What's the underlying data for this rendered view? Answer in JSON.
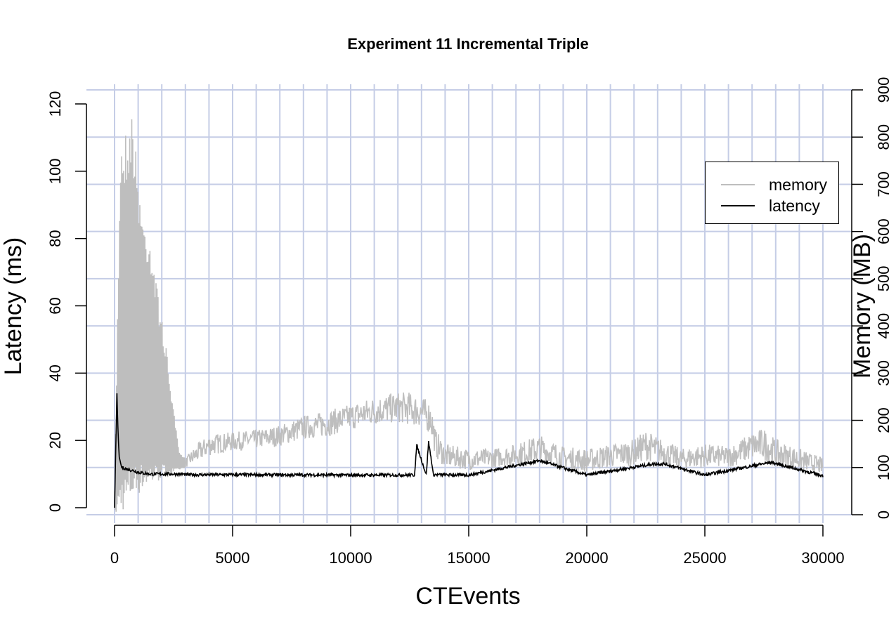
{
  "chart_data": {
    "type": "line",
    "title": "Experiment 11 Incremental Triple",
    "xlabel": "CTEvents",
    "ylabel_left": "Latency (ms)",
    "ylabel_right": "Memory (MB)",
    "xlim": [
      0,
      30000
    ],
    "ylim_left": [
      0,
      120
    ],
    "ylim_right": [
      0,
      900
    ],
    "x_ticks": [
      "0",
      "5000",
      "10000",
      "15000",
      "20000",
      "25000",
      "30000"
    ],
    "y_left_ticks": [
      "0",
      "20",
      "40",
      "60",
      "80",
      "100",
      "120"
    ],
    "y_right_ticks": [
      "0",
      "100",
      "200",
      "300",
      "400",
      "500",
      "600",
      "700",
      "800",
      "900"
    ],
    "grid": true,
    "legend_position": "top-right",
    "colors": {
      "memory": "#bebebe",
      "latency": "#000000",
      "grid": "#c5cde6"
    },
    "series": [
      {
        "name": "memory",
        "axis": "right",
        "x": [
          0,
          250,
          500,
          750,
          1000,
          1250,
          1500,
          1750,
          2000,
          2250,
          2500,
          2750,
          3000,
          3500,
          4000,
          5000,
          6000,
          7000,
          8000,
          9000,
          10000,
          11000,
          12000,
          12500,
          13000,
          13400,
          13600,
          14000,
          15000,
          16000,
          17000,
          18000,
          19000,
          20000,
          21000,
          22000,
          22500,
          23000,
          24000,
          25000,
          26000,
          27000,
          27500,
          28000,
          29000,
          30000
        ],
        "values": [
          50,
          800,
          820,
          860,
          720,
          620,
          600,
          500,
          420,
          330,
          220,
          130,
          120,
          150,
          170,
          175,
          180,
          190,
          210,
          220,
          235,
          250,
          260,
          260,
          250,
          240,
          180,
          150,
          140,
          140,
          150,
          170,
          145,
          140,
          150,
          160,
          180,
          165,
          140,
          150,
          145,
          175,
          185,
          160,
          140,
          120
        ],
        "min_values": [
          0,
          5,
          10,
          30,
          40,
          55,
          60,
          65,
          75,
          80,
          85,
          95,
          100,
          110,
          125,
          135,
          140,
          145,
          160,
          165,
          180,
          190,
          195,
          190,
          185,
          170,
          120,
          100,
          95,
          100,
          105,
          110,
          95,
          90,
          100,
          105,
          115,
          110,
          95,
          100,
          100,
          115,
          115,
          100,
          95,
          85
        ]
      },
      {
        "name": "latency",
        "axis": "left",
        "x": [
          0,
          100,
          150,
          200,
          300,
          500,
          800,
          1000,
          1500,
          2000,
          2900,
          3000,
          5000,
          10000,
          12700,
          12800,
          13200,
          13300,
          13400,
          13500,
          15000,
          18000,
          20000,
          22800,
          23300,
          25000,
          27800,
          30000
        ],
        "values": [
          0,
          34,
          22,
          15,
          12,
          11.5,
          11,
          10.5,
          10,
          10,
          10,
          9.8,
          9.8,
          9.7,
          9.7,
          18.5,
          9.8,
          19.5,
          15,
          9.8,
          9.7,
          14,
          9.7,
          13,
          13,
          9.7,
          13.5,
          9.5
        ]
      }
    ]
  }
}
